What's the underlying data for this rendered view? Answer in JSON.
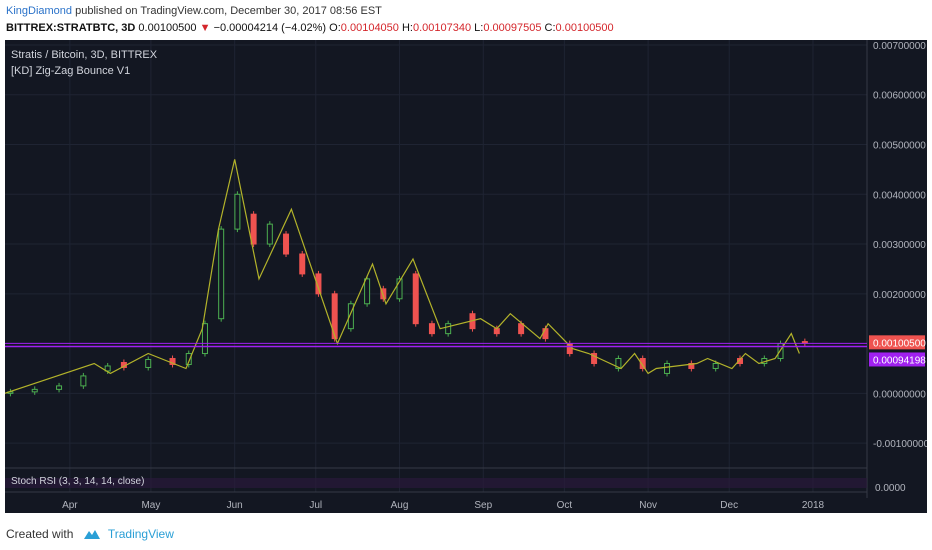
{
  "header": {
    "author": "KingDiamond",
    "published_text": "published on TradingView.com, December 30, 2017 08:56 EST",
    "symbol": "BITTREX:STRATBTC, 3D",
    "last": "0.00100500",
    "arrow": "▼",
    "change": "−0.00004214 (−4.02%)",
    "o_label": "O:",
    "o_value": "0.00104050",
    "h_label": "H:",
    "h_value": "0.00107340",
    "l_label": "L:",
    "l_value": "0.00097505",
    "c_label": "C:",
    "c_value": "0.00100500"
  },
  "chart_data": {
    "type": "line",
    "title": "Stratis / Bitcoin, 3D, BITTREX",
    "indicator": "[KD] Zig-Zag Bounce V1",
    "sub_indicator": "Stoch RSI (3, 3, 14, 14, close)",
    "ylim": [
      -0.0015,
      0.0071
    ],
    "y_ticks": [
      "0.00700000",
      "0.00600000",
      "0.00500000",
      "0.00400000",
      "0.00300000",
      "0.00200000",
      "0.00000000",
      "-0.00100000"
    ],
    "y_tick_values": [
      0.007,
      0.006,
      0.005,
      0.004,
      0.003,
      0.002,
      0.0,
      -0.001
    ],
    "x_ticks": [
      "Apr",
      "May",
      "Jun",
      "Jul",
      "Aug",
      "Sep",
      "Oct",
      "Nov",
      "Dec",
      "2018"
    ],
    "x_tick_dates": [
      "2017-04-01",
      "2017-05-01",
      "2017-06-01",
      "2017-07-01",
      "2017-08-01",
      "2017-09-01",
      "2017-10-01",
      "2017-11-01",
      "2017-12-01",
      "2018-01-01"
    ],
    "x_range": [
      "2017-03-08",
      "2018-01-21"
    ],
    "price_label": "0.00100500",
    "price_value": 0.001005,
    "support_label": "0.00094198",
    "support_value": 0.00094198,
    "stoch_label": "0.0000",
    "grid": true,
    "colors": {
      "background": "#131722",
      "up": "#4caf50",
      "down": "#ef5350",
      "zigzag": "#b3b32a",
      "support": "#a020f0",
      "price_tag": "#ef5350",
      "axis_text": "#b2b5be"
    },
    "zigzag_series": {
      "name": "[KD] Zig-Zag Bounce V1",
      "x": [
        "2017-03-08",
        "2017-04-10",
        "2017-04-16",
        "2017-04-30",
        "2017-05-14",
        "2017-05-20",
        "2017-05-26",
        "2017-06-01",
        "2017-06-10",
        "2017-06-22",
        "2017-07-09",
        "2017-07-22",
        "2017-07-27",
        "2017-08-06",
        "2017-08-16",
        "2017-08-31",
        "2017-09-06",
        "2017-09-11",
        "2017-09-22",
        "2017-09-25",
        "2017-10-04",
        "2017-10-10",
        "2017-10-22",
        "2017-10-27",
        "2017-11-01",
        "2017-11-04",
        "2017-11-19",
        "2017-11-23",
        "2017-12-02",
        "2017-12-07",
        "2017-12-12",
        "2017-12-18",
        "2017-12-24",
        "2017-12-27"
      ],
      "values": [
        0.0,
        0.0006,
        0.0004,
        0.0008,
        0.0005,
        0.0013,
        0.0033,
        0.0047,
        0.0023,
        0.0037,
        0.001,
        0.0026,
        0.0018,
        0.0027,
        0.0013,
        0.0015,
        0.0013,
        0.0016,
        0.0011,
        0.0014,
        0.0009,
        0.0008,
        0.0005,
        0.0008,
        0.0004,
        0.0005,
        0.0006,
        0.0007,
        0.0005,
        0.0008,
        0.0006,
        0.0007,
        0.0012,
        0.0008
      ]
    },
    "candles": [
      {
        "x": "2017-03-10",
        "o": 0.0,
        "c": 3e-05
      },
      {
        "x": "2017-03-19",
        "o": 3e-05,
        "c": 8e-05
      },
      {
        "x": "2017-03-28",
        "o": 8e-05,
        "c": 0.00015
      },
      {
        "x": "2017-04-06",
        "o": 0.00015,
        "c": 0.00035
      },
      {
        "x": "2017-04-15",
        "o": 0.00045,
        "c": 0.00055
      },
      {
        "x": "2017-04-21",
        "o": 0.00062,
        "c": 0.00052
      },
      {
        "x": "2017-04-30",
        "o": 0.00052,
        "c": 0.00068
      },
      {
        "x": "2017-05-09",
        "o": 0.0007,
        "c": 0.00058
      },
      {
        "x": "2017-05-15",
        "o": 0.00058,
        "c": 0.0008
      },
      {
        "x": "2017-05-21",
        "o": 0.0008,
        "c": 0.0014
      },
      {
        "x": "2017-05-27",
        "o": 0.0015,
        "c": 0.0033
      },
      {
        "x": "2017-06-02",
        "o": 0.0033,
        "c": 0.004
      },
      {
        "x": "2017-06-08",
        "o": 0.0036,
        "c": 0.003
      },
      {
        "x": "2017-06-14",
        "o": 0.003,
        "c": 0.0034
      },
      {
        "x": "2017-06-20",
        "o": 0.0032,
        "c": 0.0028
      },
      {
        "x": "2017-06-26",
        "o": 0.0028,
        "c": 0.0024
      },
      {
        "x": "2017-07-02",
        "o": 0.0024,
        "c": 0.002
      },
      {
        "x": "2017-07-08",
        "o": 0.002,
        "c": 0.0011
      },
      {
        "x": "2017-07-14",
        "o": 0.0013,
        "c": 0.0018
      },
      {
        "x": "2017-07-20",
        "o": 0.0018,
        "c": 0.0023
      },
      {
        "x": "2017-07-26",
        "o": 0.0021,
        "c": 0.0019
      },
      {
        "x": "2017-08-01",
        "o": 0.0019,
        "c": 0.0023
      },
      {
        "x": "2017-08-07",
        "o": 0.0024,
        "c": 0.0014
      },
      {
        "x": "2017-08-13",
        "o": 0.0014,
        "c": 0.0012
      },
      {
        "x": "2017-08-19",
        "o": 0.0012,
        "c": 0.0014
      },
      {
        "x": "2017-08-28",
        "o": 0.0016,
        "c": 0.0013
      },
      {
        "x": "2017-09-06",
        "o": 0.0013,
        "c": 0.0012
      },
      {
        "x": "2017-09-15",
        "o": 0.0014,
        "c": 0.0012
      },
      {
        "x": "2017-09-24",
        "o": 0.0013,
        "c": 0.0011
      },
      {
        "x": "2017-10-03",
        "o": 0.001,
        "c": 0.0008
      },
      {
        "x": "2017-10-12",
        "o": 0.0008,
        "c": 0.0006
      },
      {
        "x": "2017-10-21",
        "o": 0.0005,
        "c": 0.0007
      },
      {
        "x": "2017-10-30",
        "o": 0.0007,
        "c": 0.0005
      },
      {
        "x": "2017-11-08",
        "o": 0.0004,
        "c": 0.0006
      },
      {
        "x": "2017-11-17",
        "o": 0.0006,
        "c": 0.0005
      },
      {
        "x": "2017-11-26",
        "o": 0.0005,
        "c": 0.0006
      },
      {
        "x": "2017-12-05",
        "o": 0.0007,
        "c": 0.0006
      },
      {
        "x": "2017-12-14",
        "o": 0.0006,
        "c": 0.0007
      },
      {
        "x": "2017-12-20",
        "o": 0.0007,
        "c": 0.001
      },
      {
        "x": "2017-12-29",
        "o": 0.00104,
        "c": 0.001005
      }
    ]
  },
  "footer": {
    "created_with": "Created with",
    "brand": "TradingView"
  }
}
